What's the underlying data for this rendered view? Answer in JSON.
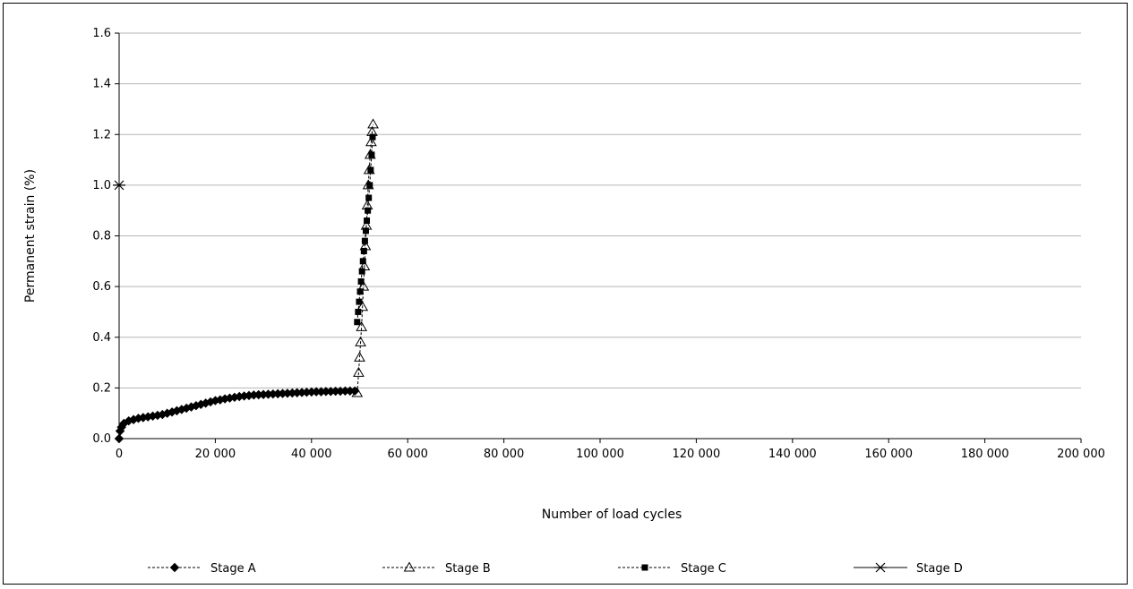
{
  "chart_data": {
    "type": "scatter",
    "title": "",
    "xlabel": "Number of load cycles",
    "ylabel": "Permanent strain (%)",
    "xlim": [
      0,
      200000
    ],
    "ylim": [
      0,
      1.6
    ],
    "x_ticks": [
      0,
      20000,
      40000,
      60000,
      80000,
      100000,
      120000,
      140000,
      160000,
      180000,
      200000
    ],
    "x_tick_labels": [
      "0",
      "20 000",
      "40 000",
      "60 000",
      "80 000",
      "100 000",
      "120 000",
      "140 000",
      "160 000",
      "180 000",
      "200 000"
    ],
    "y_ticks": [
      0,
      0.2,
      0.4,
      0.6,
      0.8,
      1.0,
      1.2,
      1.4,
      1.6
    ],
    "y_tick_labels": [
      "0.0",
      "0.2",
      "0.4",
      "0.6",
      "0.8",
      "1.0",
      "1.2",
      "1.4",
      "1.6"
    ],
    "grid": "horizontal",
    "legend_position": "bottom",
    "series": [
      {
        "name": "Stage A",
        "marker": "diamond-filled",
        "line": "dashed",
        "x": [
          0,
          200,
          500,
          1000,
          2000,
          3000,
          4000,
          5000,
          6000,
          7000,
          8000,
          9000,
          10000,
          11000,
          12000,
          13000,
          14000,
          15000,
          16000,
          17000,
          18000,
          19000,
          20000,
          21000,
          22000,
          23000,
          24000,
          25000,
          26000,
          27000,
          28000,
          29000,
          30000,
          31000,
          32000,
          33000,
          34000,
          35000,
          36000,
          37000,
          38000,
          39000,
          40000,
          41000,
          42000,
          43000,
          44000,
          45000,
          46000,
          47000,
          48000,
          49000
        ],
        "y": [
          0.0,
          0.03,
          0.045,
          0.06,
          0.07,
          0.075,
          0.08,
          0.083,
          0.086,
          0.089,
          0.092,
          0.095,
          0.1,
          0.105,
          0.11,
          0.115,
          0.12,
          0.125,
          0.13,
          0.135,
          0.14,
          0.145,
          0.15,
          0.153,
          0.157,
          0.16,
          0.163,
          0.166,
          0.168,
          0.17,
          0.172,
          0.173,
          0.174,
          0.175,
          0.176,
          0.177,
          0.178,
          0.179,
          0.18,
          0.181,
          0.182,
          0.183,
          0.184,
          0.185,
          0.185,
          0.186,
          0.186,
          0.187,
          0.187,
          0.188,
          0.188,
          0.188
        ]
      },
      {
        "name": "Stage B",
        "marker": "triangle-open",
        "line": "dashed",
        "x": [
          49500,
          49800,
          50000,
          50200,
          50400,
          50600,
          50800,
          51000,
          51200,
          51400,
          51600,
          51800,
          52000,
          52200,
          52400,
          52600,
          52800
        ],
        "y": [
          0.18,
          0.26,
          0.32,
          0.38,
          0.44,
          0.52,
          0.6,
          0.68,
          0.76,
          0.84,
          0.92,
          1.0,
          1.06,
          1.12,
          1.17,
          1.21,
          1.24
        ]
      },
      {
        "name": "Stage C",
        "marker": "square-filled",
        "line": "dashed",
        "x": [
          49500,
          49700,
          49900,
          50100,
          50300,
          50500,
          50700,
          50900,
          51100,
          51300,
          51500,
          51700,
          51900,
          52100,
          52300,
          52500,
          52700
        ],
        "y": [
          0.46,
          0.5,
          0.54,
          0.58,
          0.62,
          0.66,
          0.7,
          0.74,
          0.78,
          0.82,
          0.86,
          0.9,
          0.95,
          1.0,
          1.06,
          1.12,
          1.19
        ]
      },
      {
        "name": "Stage D",
        "marker": "x-star",
        "line": "solid",
        "x": [
          0
        ],
        "y": [
          1.0
        ]
      }
    ]
  }
}
